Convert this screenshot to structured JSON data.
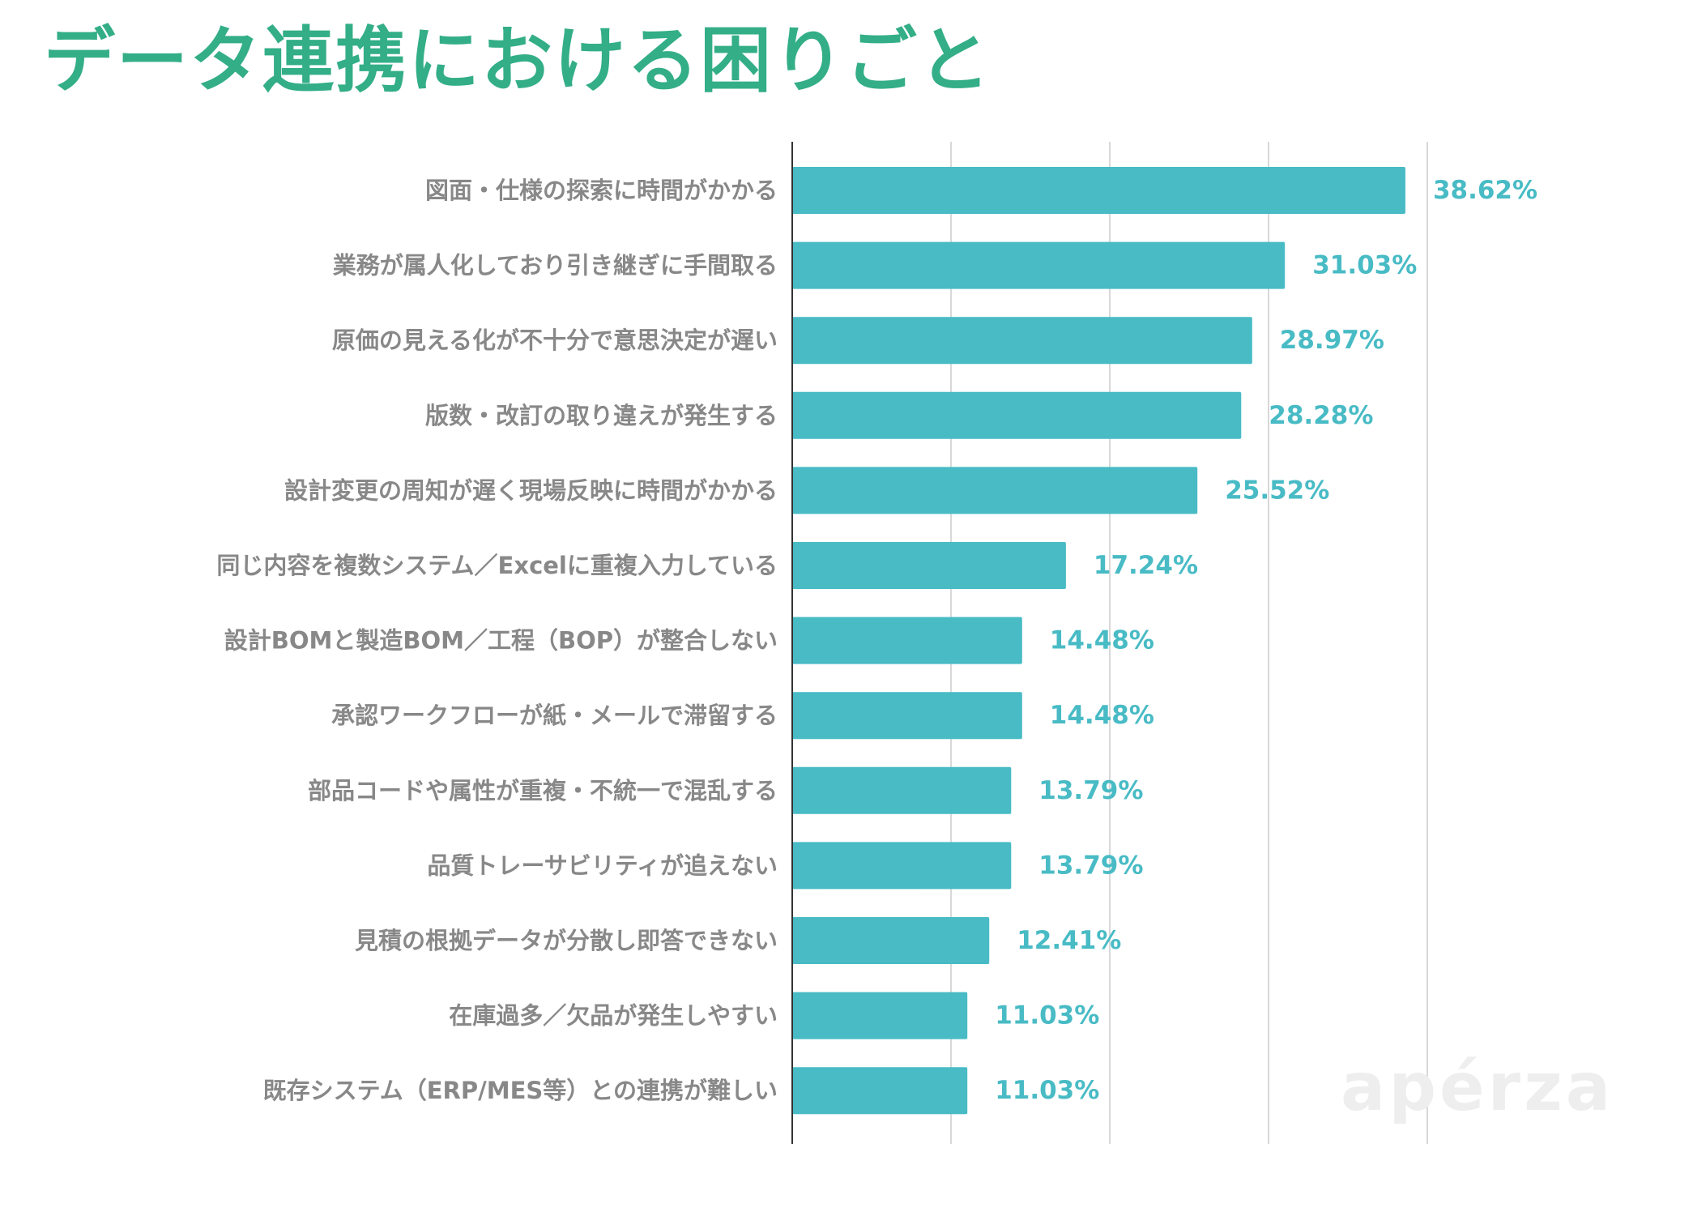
{
  "title": "データ連携における困りごと",
  "watermark": "apérza",
  "colors": {
    "title": "#33ae87",
    "bar": "#48bbc5",
    "value_label": "#48bbc5",
    "category_label": "#888888",
    "gridline": "#d8d8d8",
    "axis": "#333333"
  },
  "chart_data": {
    "type": "bar",
    "orientation": "horizontal",
    "categories": [
      "図面・仕様の探索に時間がかかる",
      "業務が属人化しており引き継ぎに手間取る",
      "原価の見える化が不十分で意思決定が遅い",
      "版数・改訂の取り違えが発生する",
      "設計変更の周知が遅く現場反映に時間がかかる",
      "同じ内容を複数システム／Excelに重複入力している",
      "設計BOMと製造BOM／工程（BOP）が整合しない",
      "承認ワークフローが紙・メールで滞留する",
      "部品コードや属性が重複・不統一で混乱する",
      "品質トレーサビリティが追えない",
      "見積の根拠データが分散し即答できない",
      "在庫過多／欠品が発生しやすい",
      "既存システム（ERP/MES等）との連携が難しい"
    ],
    "values": [
      38.62,
      31.03,
      28.97,
      28.28,
      25.52,
      17.24,
      14.48,
      14.48,
      13.79,
      13.79,
      12.41,
      11.03,
      11.03
    ],
    "value_labels": [
      "38.62%",
      "31.03%",
      "28.97%",
      "28.28%",
      "25.52%",
      "17.24%",
      "14.48%",
      "14.48%",
      "13.79%",
      "13.79%",
      "12.41%",
      "11.03%",
      "11.03%"
    ],
    "xlim": [
      0,
      40
    ],
    "grid_step": 10,
    "grid": true,
    "legend": false
  }
}
